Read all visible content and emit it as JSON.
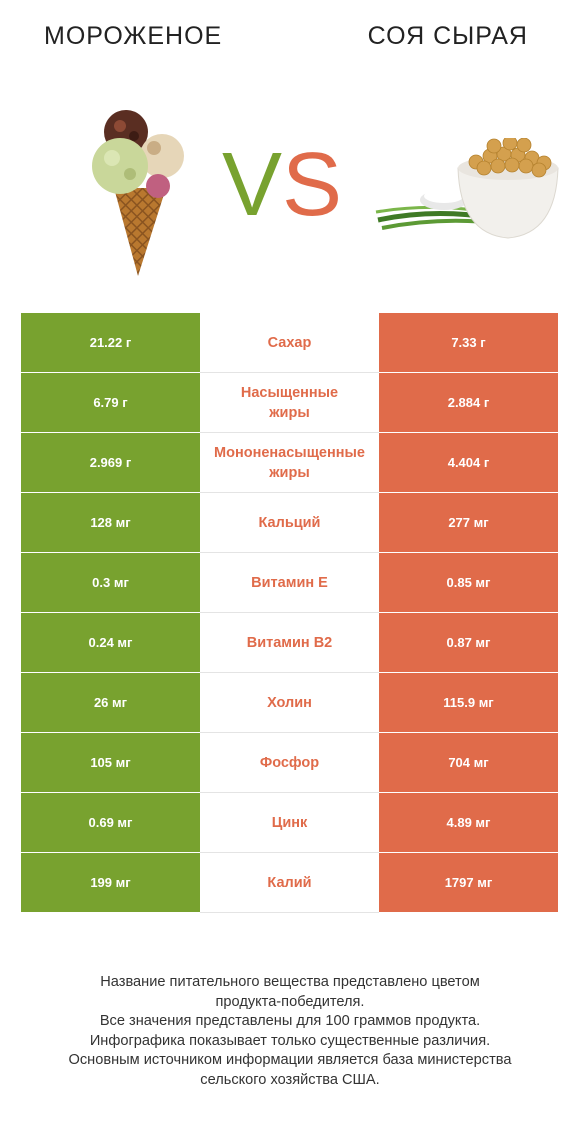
{
  "header": {
    "left_title": "МОРОЖЕНОЕ",
    "right_title": "СОЯ СЫРАЯ",
    "vs_v": "V",
    "vs_s": "S"
  },
  "images": {
    "left": "ice-cream-cone",
    "right": "raw-soybeans-bowl"
  },
  "colors": {
    "left_winner": "#78a22f",
    "right_winner": "#e06b4a"
  },
  "rows": [
    {
      "left": "21.22 г",
      "label": "Сахар",
      "right": "7.33 г"
    },
    {
      "left": "6.79 г",
      "label": "Насыщенные жиры",
      "label_line1": "Насыщенные",
      "label_line2": "жиры",
      "right": "2.884 г"
    },
    {
      "left": "2.969 г",
      "label": "Мононенасыщенные жиры",
      "label_line1": "Мононенасыщенные",
      "label_line2": "жиры",
      "right": "4.404 г"
    },
    {
      "left": "128 мг",
      "label": "Кальций",
      "right": "277 мг"
    },
    {
      "left": "0.3 мг",
      "label": "Витамин E",
      "right": "0.85 мг"
    },
    {
      "left": "0.24 мг",
      "label": "Витамин B2",
      "right": "0.87 мг"
    },
    {
      "left": "26 мг",
      "label": "Холин",
      "right": "115.9 мг"
    },
    {
      "left": "105 мг",
      "label": "Фосфор",
      "right": "704 мг"
    },
    {
      "left": "0.69 мг",
      "label": "Цинк",
      "right": "4.89 мг"
    },
    {
      "left": "199 мг",
      "label": "Калий",
      "right": "1797 мг"
    }
  ],
  "footer": {
    "line1": "Название питательного вещества представлено цветом",
    "line2": "продукта-победителя.",
    "line3": "Все значения представлены для 100 граммов продукта.",
    "line4": "Инфографика показывает только существенные различия.",
    "line5": "Основным источником информации является база министерства",
    "line6": "сельского хозяйства США."
  }
}
